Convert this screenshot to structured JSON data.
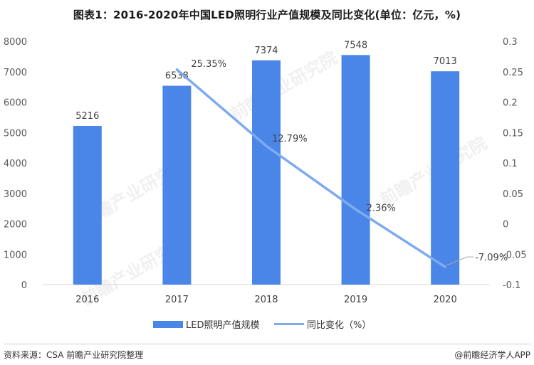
{
  "title": "图表1：2016-2020年中国LED照明行业产值规模及同比变化(单位：亿元，%)",
  "source": "资料来源：CSA 前瞻产业研究院整理",
  "credit": "@前瞻经济学人APP",
  "watermark": "前瞻产业研究院",
  "chart_data": {
    "type": "bar",
    "categories": [
      "2016",
      "2017",
      "2018",
      "2019",
      "2020"
    ],
    "series": [
      {
        "name": "LED照明产值规模",
        "type": "bar",
        "axis": "left",
        "values": [
          5216,
          6538,
          7374,
          7548,
          7013
        ],
        "labels": [
          "5216",
          "6538",
          "7374",
          "7548",
          "7013"
        ],
        "color": "#4a86e8"
      },
      {
        "name": "同比变化（%）",
        "type": "line",
        "axis": "right",
        "values": [
          null,
          0.2535,
          0.1279,
          0.0236,
          -0.0709
        ],
        "labels": [
          "",
          "25.35%",
          "12.79%",
          "2.36%",
          "-7.09%"
        ],
        "color": "#7eaaf0"
      }
    ],
    "y_left": {
      "min": 0,
      "max": 8000,
      "ticks": [
        "0",
        "1000",
        "2000",
        "3000",
        "4000",
        "5000",
        "6000",
        "7000",
        "8000"
      ]
    },
    "y_right": {
      "min": -0.1,
      "max": 0.3,
      "ticks": [
        "-0.1",
        "-0.05",
        "0",
        "0.05",
        "0.1",
        "0.15",
        "0.2",
        "0.25",
        "0.3"
      ]
    },
    "legend_position": "bottom"
  }
}
